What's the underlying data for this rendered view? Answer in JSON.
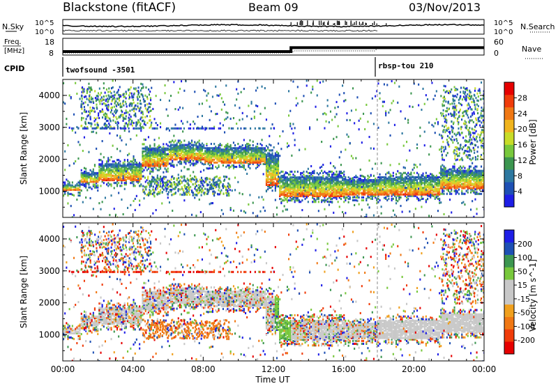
{
  "header": {
    "station": "Blackstone (fitACF)",
    "beam": "Beam 09",
    "date": "03/Nov/2013"
  },
  "colors": {
    "power": [
      "#1e1ee6",
      "#1e50b4",
      "#2d78a0",
      "#3c9650",
      "#78c83c",
      "#c8dc28",
      "#f0b41e",
      "#f07814",
      "#f03c0a",
      "#e60000"
    ],
    "velocity": [
      "#1e1ee6",
      "#1e50b4",
      "#3c9650",
      "#78c83c",
      "#c8c8c8",
      "#c8c8c8",
      "#f0a01e",
      "#f07814",
      "#f03c0a",
      "#e60000"
    ],
    "ground_scatter": "#c8c8c8"
  },
  "chart_data": [
    {
      "type": "line",
      "panel": "noise",
      "left_label": "N.Sky",
      "right_label": "N.Search",
      "left_ticks": [
        "10^5",
        "10^0"
      ],
      "right_ticks": [
        "10^5",
        "10^0"
      ],
      "series": [
        {
          "name": "N.Sky"
        },
        {
          "name": "N.Search"
        }
      ]
    },
    {
      "type": "line",
      "panel": "frequency",
      "left_label_lines": [
        "Freq.",
        "[MHz]"
      ],
      "left_ticks": [
        18,
        8
      ],
      "right_label": "Nave",
      "right_ticks": [
        60,
        0
      ],
      "series": [
        {
          "name": "Nave"
        }
      ],
      "freq_segments": [
        {
          "from": "00:00",
          "to": "13:00",
          "value_mhz": 8
        },
        {
          "from": "13:00",
          "to": "24:00",
          "value_mhz": 12
        }
      ]
    },
    {
      "type": "table",
      "panel": "cpid",
      "label": "CPID",
      "programs": [
        {
          "name": "twofsound -3501",
          "start_hours": 0
        },
        {
          "name": "rbsp-tou 210",
          "start_hours": 18
        }
      ]
    },
    {
      "type": "heatmap",
      "panel": "power",
      "xlabel": "",
      "ylabel": "Slant Range [km]",
      "yticks": [
        1000,
        2000,
        3000,
        4000
      ],
      "ylim": [
        180,
        4500
      ],
      "xlim_hours": [
        0,
        24
      ],
      "colorbar": {
        "label": "Power [dB]",
        "ticks": [
          4,
          8,
          12,
          16,
          20,
          24,
          28
        ],
        "range": [
          0,
          32
        ]
      },
      "echo_bands": [
        {
          "t0": 0.0,
          "t1": 1.0,
          "r0": 1050,
          "r1": 1250
        },
        {
          "t0": 1.0,
          "t1": 2.0,
          "r0": 1300,
          "r1": 1600
        },
        {
          "t0": 2.0,
          "t1": 4.5,
          "r0": 1350,
          "r1": 1900
        },
        {
          "t0": 4.5,
          "t1": 6.0,
          "r0": 1800,
          "r1": 2400
        },
        {
          "t0": 6.0,
          "t1": 8.0,
          "r0": 2000,
          "r1": 2500
        },
        {
          "t0": 8.0,
          "t1": 11.5,
          "r0": 1900,
          "r1": 2400
        },
        {
          "t0": 11.5,
          "t1": 12.3,
          "r0": 1200,
          "r1": 2200
        },
        {
          "t0": 12.3,
          "t1": 16.0,
          "r0": 850,
          "r1": 1500
        },
        {
          "t0": 16.0,
          "t1": 18.0,
          "r0": 900,
          "r1": 1400
        },
        {
          "t0": 18.0,
          "t1": 21.5,
          "r0": 900,
          "r1": 1500
        },
        {
          "t0": 21.5,
          "t1": 24.0,
          "r0": 1100,
          "r1": 1700
        }
      ],
      "weak_regions": [
        {
          "t0": 4.5,
          "t1": 9.5,
          "r0": 900,
          "r1": 1500
        },
        {
          "t0": 1.0,
          "t1": 5.0,
          "r0": 3000,
          "r1": 4300
        },
        {
          "t0": 21.5,
          "t1": 24.0,
          "r0": 2000,
          "r1": 4300
        }
      ],
      "xticks": [
        "00:00",
        "04:00",
        "08:00",
        "12:00",
        "16:00",
        "20:00",
        "00:00"
      ]
    },
    {
      "type": "heatmap",
      "panel": "velocity",
      "xlabel": "Time UT",
      "ylabel": "Slant Range [km]",
      "yticks": [
        1000,
        2000,
        3000,
        4000
      ],
      "ylim": [
        180,
        4500
      ],
      "xlim_hours": [
        0,
        24
      ],
      "colorbar": {
        "label": "Velocity [m s^-1]",
        "ticks": [
          200,
          100,
          50,
          15,
          -15,
          -50,
          -100,
          -200
        ],
        "range": [
          -250,
          250
        ]
      },
      "xticks": [
        "00:00",
        "04:00",
        "08:00",
        "12:00",
        "16:00",
        "20:00",
        "00:00"
      ]
    }
  ]
}
